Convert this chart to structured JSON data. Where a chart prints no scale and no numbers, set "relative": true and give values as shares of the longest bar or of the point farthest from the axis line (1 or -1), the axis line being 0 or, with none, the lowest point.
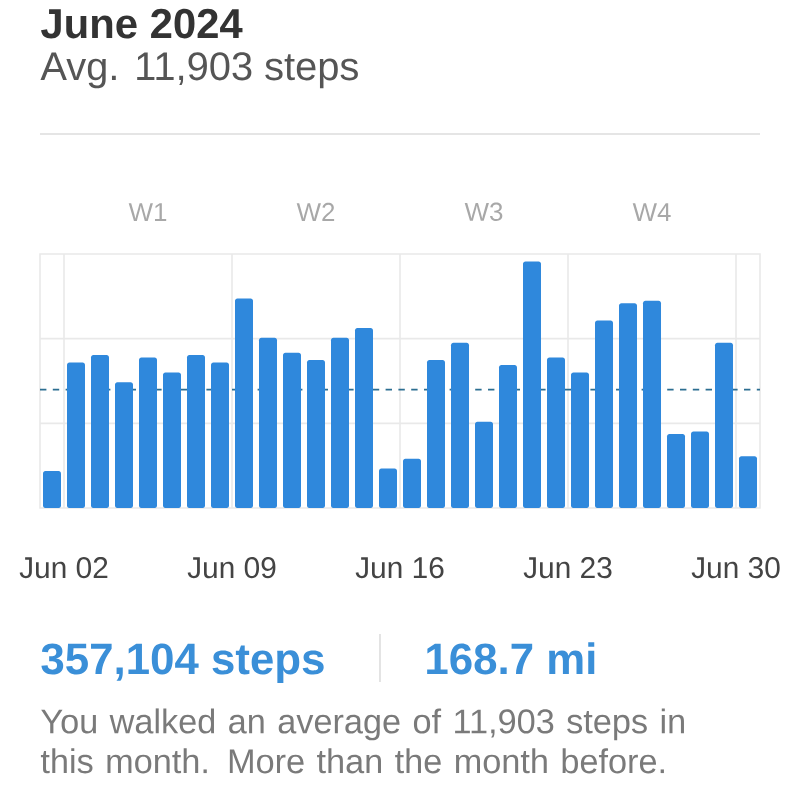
{
  "chart_data": {
    "type": "bar",
    "title": "June 2024",
    "subtitle": "Avg. 11,903 steps",
    "x": [
      "2024-06-01T12:00",
      "2024-06-02T12:00",
      "2024-06-03T12:00",
      "2024-06-04T12:00",
      "2024-06-05T12:00",
      "2024-06-06T12:00",
      "2024-06-07T12:00",
      "2024-06-08T12:00",
      "2024-06-09T12:00",
      "2024-06-10T12:00",
      "2024-06-11T12:00",
      "2024-06-12T12:00",
      "2024-06-13T12:00",
      "2024-06-14T12:00",
      "2024-06-15T12:00",
      "2024-06-16T12:00",
      "2024-06-17T12:00",
      "2024-06-18T12:00",
      "2024-06-19T12:00",
      "2024-06-20T12:00",
      "2024-06-21T12:00",
      "2024-06-22T12:00",
      "2024-06-23T12:00",
      "2024-06-24T12:00",
      "2024-06-25T12:00",
      "2024-06-26T12:00",
      "2024-06-27T12:00",
      "2024-06-28T12:00",
      "2024-06-29T12:00",
      "2024-06-30T12:00"
    ],
    "series": [
      {
        "color": "#2f88dc",
        "values": [
          0.15,
          0.59,
          0.62,
          0.51,
          0.61,
          0.55,
          0.62,
          0.59,
          0.85,
          0.69,
          0.63,
          0.6,
          0.69,
          0.73,
          0.16,
          0.2,
          0.6,
          0.67,
          0.35,
          0.58,
          1,
          0.61,
          0.55,
          0.76,
          0.83,
          0.84,
          0.3,
          0.31,
          0.67,
          0.21
        ]
      },
      {
        "type": "line",
        "x": [
          "2024-06-01",
          "2024-07-01"
        ],
        "values": [
          0.48,
          0.48
        ],
        "color": "#2c6e91",
        "line_style": "dashed"
      }
    ],
    "relative": true,
    "xlim": [
      "2024-06-01",
      "2024-07-01"
    ],
    "xticks": [
      {
        "value": "2024-06-02",
        "label": "Jun 02"
      },
      {
        "value": "2024-06-09",
        "label": "Jun 09"
      },
      {
        "value": "2024-06-16",
        "label": "Jun 16"
      },
      {
        "value": "2024-06-23",
        "label": "Jun 23"
      },
      {
        "value": "2024-06-30",
        "label": "Jun 30"
      }
    ],
    "x2lim": [
      "2024-06-01",
      "2024-07-01"
    ],
    "x2ticks": [
      {
        "value": "2024-06-05T12:00",
        "label": "W1"
      },
      {
        "value": "2024-06-12T12:00",
        "label": "W2"
      },
      {
        "value": "2024-06-19T12:00",
        "label": "W3"
      },
      {
        "value": "2024-06-26T12:00",
        "label": "W4"
      }
    ],
    "grid": true,
    "annotations": [
      "357,104 steps",
      "168.7 mi",
      "You walked an average of 11,903 steps in this month. More than the month before."
    ]
  }
}
